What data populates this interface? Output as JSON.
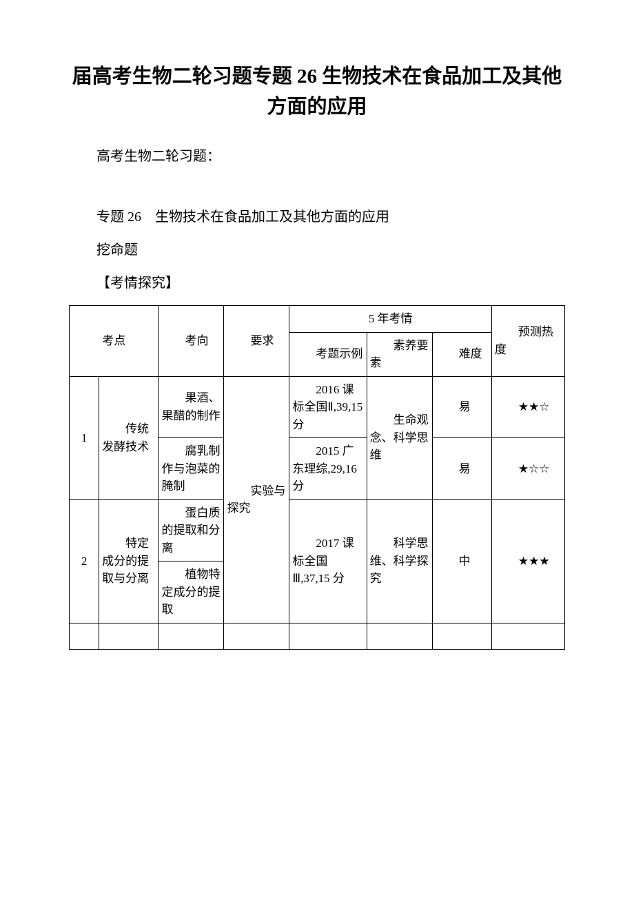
{
  "title": "届高考生物二轮习题专题 26 生物技术在食品加工及其他方面的应用",
  "intro": "高考生物二轮习题：",
  "topic_line": "专题 26　生物技术在食品加工及其他方面的应用",
  "dig": "挖命题",
  "explore": "【考情探究】",
  "table": {
    "headers": {
      "point": "考点",
      "direction": "考向",
      "requirement": "要求",
      "five_year": "5 年考情",
      "example": "考题示例",
      "element": "素养要素",
      "difficulty": "难度",
      "predict": "预测热度"
    },
    "rows": {
      "r1_num": "1",
      "r1_topic": "传统发酵技术",
      "r1_dir_a": "果酒、果醋的制作",
      "r1_dir_b": "腐乳制作与泡菜的腌制",
      "r1_exam_a": "2016 课标全国Ⅱ,39,15分",
      "r1_exam_b": "2015 广东理综,29,16分",
      "r1_elem": "生命观念、科学思维",
      "r1_diff_a": "易",
      "r1_diff_b": "易",
      "r1_heat_a": "★★☆",
      "r1_heat_b": "★☆☆",
      "r2_num": "2",
      "r2_topic": "特定成分的提取与分离",
      "r2_dir_a": "蛋白质的提取和分离",
      "r2_dir_b": "植物特定成分的提取",
      "r2_exam": "2017 课标全国Ⅲ,37,15 分",
      "r2_elem": "科学思维、科学探究",
      "r2_diff": "中",
      "r2_heat": "★★★",
      "req": "实验与探究"
    }
  }
}
